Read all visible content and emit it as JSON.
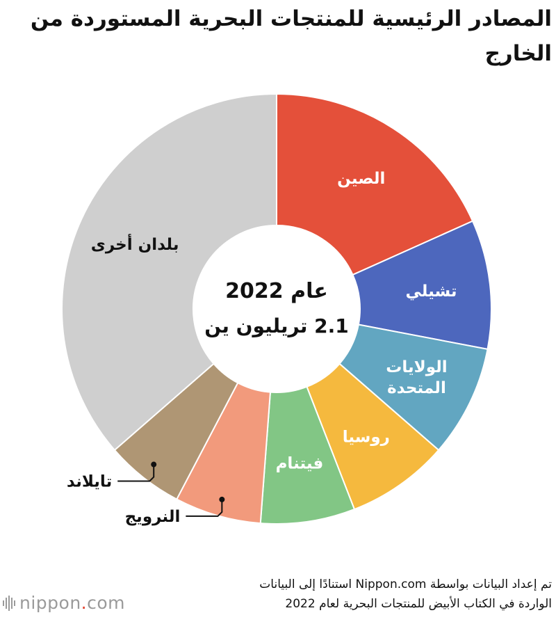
{
  "title": "المصادر الرئيسية للمنتجات البحرية المستوردة من الخارج",
  "center": {
    "line1": "عام 2022",
    "line2": "2.1 تريليون ين"
  },
  "source_note": {
    "line1": "تم إعداد البيانات بواسطة Nippon.com استنادًا إلى البيانات",
    "line2": "الواردة في الكتاب الأبيض للمنتجات البحرية لعام 2022"
  },
  "logo": {
    "text_main": "nippon",
    "text_dot": ".",
    "text_tld": "com"
  },
  "chart_data": {
    "type": "pie",
    "donut": true,
    "title": "المصادر الرئيسية للمنتجات البحرية المستوردة من الخارج",
    "center_text": [
      "عام 2022",
      "2.1 تريليون ين"
    ],
    "slices": [
      {
        "label": [
          "الصين"
        ],
        "value": 18.3,
        "color": "#e4503a",
        "label_color": "#ffffff"
      },
      {
        "label": [
          "تشيلي"
        ],
        "value": 9.7,
        "color": "#4d67bd",
        "label_color": "#ffffff"
      },
      {
        "label": [
          "الولايات",
          "المتحدة"
        ],
        "value": 8.4,
        "color": "#62a6c1",
        "label_color": "#ffffff"
      },
      {
        "label": [
          "روسيا"
        ],
        "value": 7.7,
        "color": "#f5b93e",
        "label_color": "#ffffff"
      },
      {
        "label": [
          "فيتنام"
        ],
        "value": 7.1,
        "color": "#82c685",
        "label_color": "#ffffff"
      },
      {
        "label": [
          "النرويج"
        ],
        "value": 6.5,
        "color": "#f29a7c",
        "label_color": "#111111",
        "callout": true
      },
      {
        "label": [
          "تايلاند"
        ],
        "value": 5.9,
        "color": "#af9674",
        "label_color": "#111111",
        "callout": true
      },
      {
        "label": [
          "بلدان أخرى"
        ],
        "value": 36.4,
        "color": "#cfcfcf",
        "label_color": "#111111"
      }
    ]
  }
}
